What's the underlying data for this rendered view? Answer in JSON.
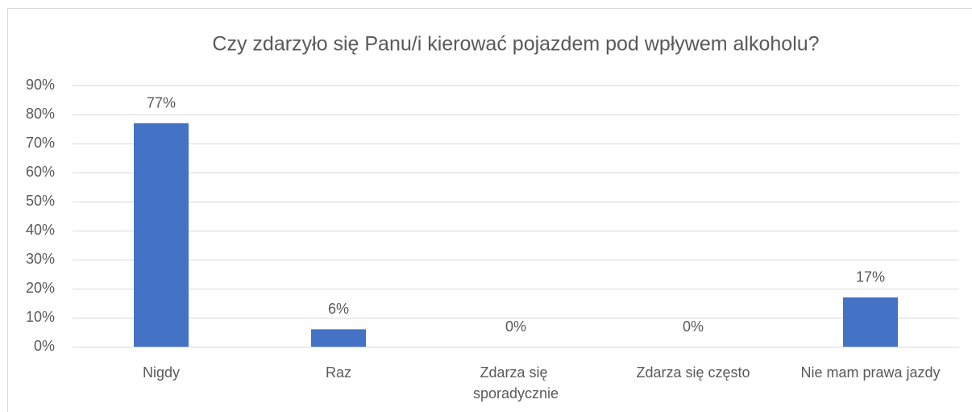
{
  "chart_data": {
    "type": "bar",
    "title": "Czy zdarzyło się Panu/i kierować pojazdem pod wpływem alkoholu?",
    "categories": [
      "Nigdy",
      "Raz",
      "Zdarza się sporadycznie",
      "Zdarza się często",
      "Nie mam prawa jazdy"
    ],
    "values": [
      77,
      6,
      0,
      0,
      17
    ],
    "value_labels": [
      "77%",
      "6%",
      "0%",
      "0%",
      "17%"
    ],
    "color": "#4472c4",
    "ylim": [
      0,
      90
    ],
    "yticks": [
      {
        "value": 0,
        "label": "0%"
      },
      {
        "value": 10,
        "label": "10%"
      },
      {
        "value": 20,
        "label": "20%"
      },
      {
        "value": 30,
        "label": "30%"
      },
      {
        "value": 40,
        "label": "40%"
      },
      {
        "value": 50,
        "label": "50%"
      },
      {
        "value": 60,
        "label": "60%"
      },
      {
        "value": 70,
        "label": "70%"
      },
      {
        "value": 80,
        "label": "80%"
      },
      {
        "value": 90,
        "label": "90%"
      }
    ],
    "grid": true
  }
}
